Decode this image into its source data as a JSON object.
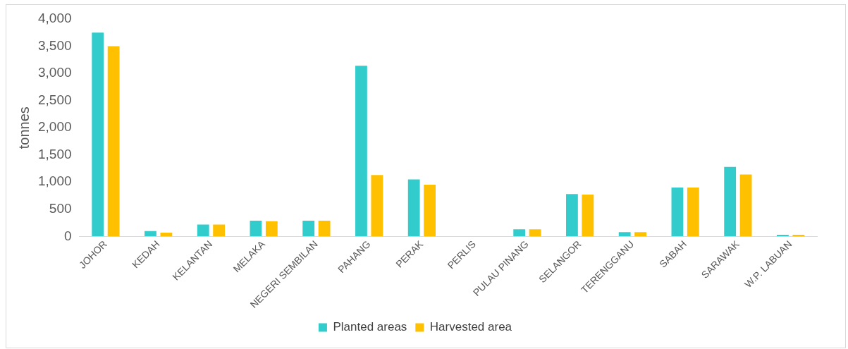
{
  "chart_data": {
    "type": "bar",
    "ylabel": "tonnes",
    "categories": [
      "JOHOR",
      "KEDAH",
      "KELANTAN",
      "MELAKA",
      "NEGERI SEMBILAN",
      "PAHANG",
      "PERAK",
      "PERLIS",
      "PULAU PINANG",
      "SELANGOR",
      "TERENGGANU",
      "SABAH",
      "SARAWAK",
      "W.P. LABUAN"
    ],
    "series": [
      {
        "name": "Planted areas",
        "color": "#33cccc",
        "values": [
          3750,
          100,
          220,
          290,
          290,
          3140,
          1050,
          null,
          130,
          780,
          80,
          900,
          1280,
          30
        ]
      },
      {
        "name": "Harvested area",
        "color": "#ffc000",
        "values": [
          3500,
          70,
          220,
          280,
          290,
          1130,
          950,
          null,
          130,
          770,
          80,
          900,
          1140,
          30
        ]
      }
    ],
    "ylim": [
      0,
      4000
    ],
    "yticks": [
      {
        "value": 0,
        "label": "0"
      },
      {
        "value": 500,
        "label": "500"
      },
      {
        "value": 1000,
        "label": "1,000"
      },
      {
        "value": 1500,
        "label": "1,500"
      },
      {
        "value": 2000,
        "label": "2,000"
      },
      {
        "value": 2500,
        "label": "2,500"
      },
      {
        "value": 3000,
        "label": "3,000"
      },
      {
        "value": 3500,
        "label": "3,500"
      },
      {
        "value": 4000,
        "label": "4,000"
      }
    ],
    "grid": false,
    "legend": "bottom"
  }
}
